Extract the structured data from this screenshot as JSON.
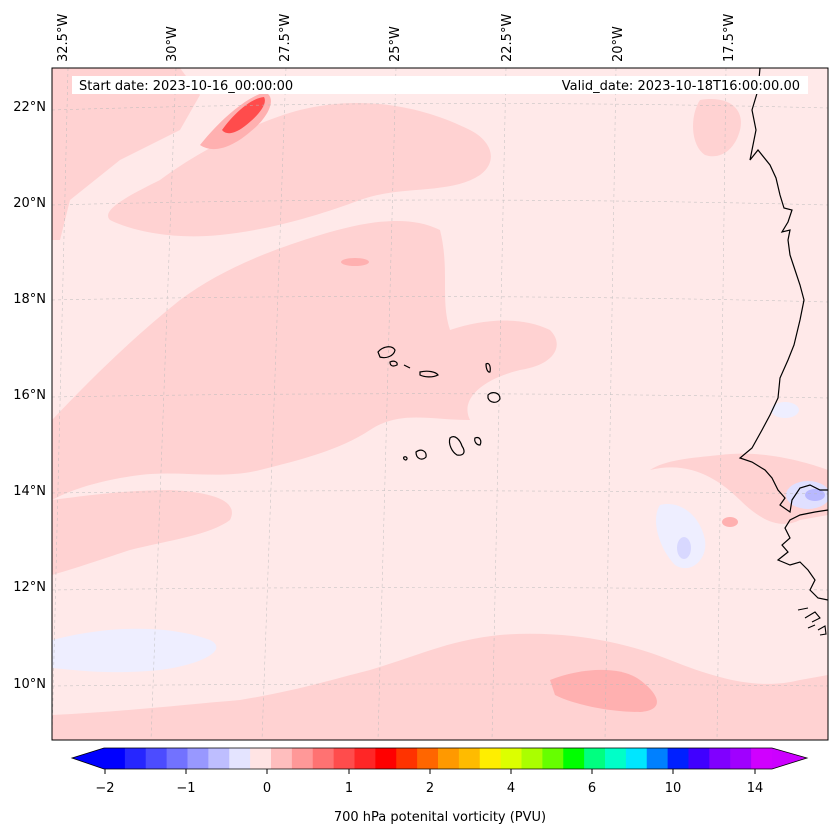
{
  "header": {
    "start_date": "Start date: 2023-10-16_00:00:00",
    "valid_date": "Valid_date: 2023-10-18T16:00:00.00"
  },
  "map": {
    "lon_labels": [
      "32.5°W",
      "30°W",
      "27.5°W",
      "25°W",
      "22.5°W",
      "20°W",
      "17.5°W"
    ],
    "lat_labels": [
      "22°N",
      "20°N",
      "18°N",
      "16°N",
      "14°N",
      "12°N",
      "10°N"
    ],
    "background_color": "#ffe9e9",
    "field_color_weak": "#ffd2d2",
    "field_color_mid": "#ffb0b0",
    "field_color_strong": "#ff3a3a",
    "negative_color": "#eeeeff"
  },
  "colorbar": {
    "ticks": [
      "−2",
      "−1",
      "0",
      "1",
      "2",
      "4",
      "6",
      "10",
      "14"
    ],
    "label": "700 hPa potenital vorticity (PVU)",
    "colors": [
      "#0000ff",
      "#2626ff",
      "#4c4cff",
      "#7272ff",
      "#9898ff",
      "#bebeff",
      "#e4e4ff",
      "#ffe4e4",
      "#ffbebe",
      "#ff9898",
      "#ff7272",
      "#ff4c4c",
      "#ff2626",
      "#ff0000",
      "#ff3300",
      "#ff6600",
      "#ff9900",
      "#ffbb00",
      "#ffee00",
      "#dcff00",
      "#aaff00",
      "#66ff00",
      "#00ff00",
      "#00ff80",
      "#00ffc8",
      "#00e6ff",
      "#0080ff",
      "#0020ff",
      "#4000ff",
      "#8000ff",
      "#a000ff",
      "#d000ff"
    ],
    "under_color": "#0000ff",
    "over_color": "#cc00ff"
  }
}
